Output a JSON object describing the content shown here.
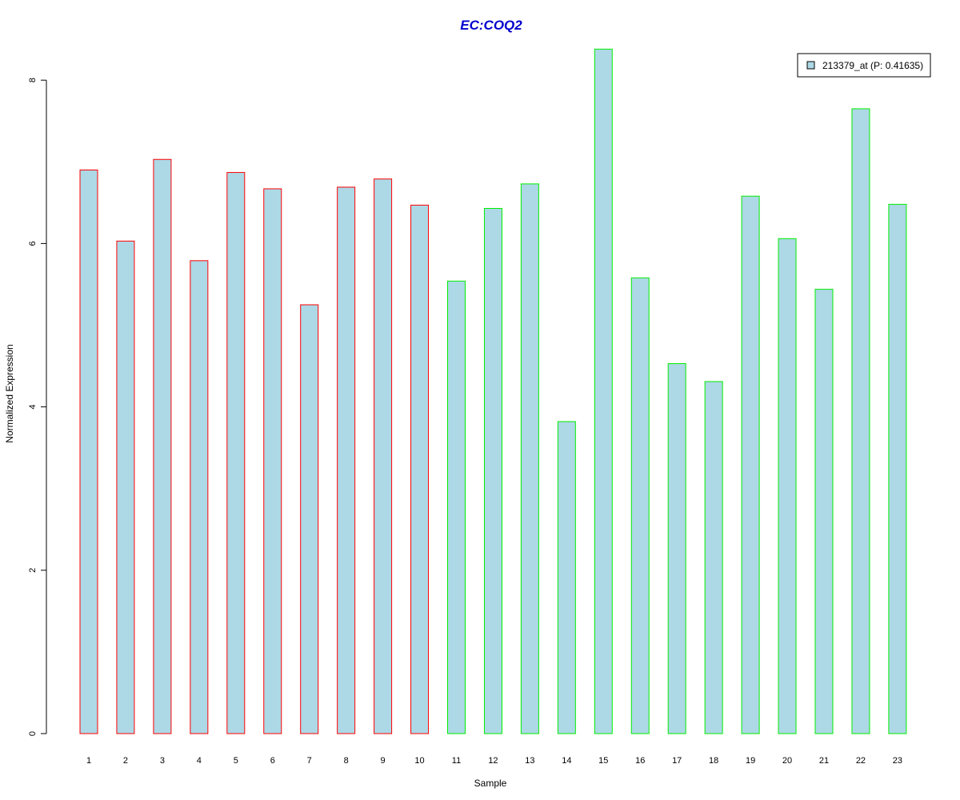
{
  "chart_data": {
    "type": "bar",
    "title": "EC:COQ2",
    "xlabel": "Sample",
    "ylabel": "Normalized Expression",
    "categories": [
      "1",
      "2",
      "3",
      "4",
      "5",
      "6",
      "7",
      "8",
      "9",
      "10",
      "11",
      "12",
      "13",
      "14",
      "15",
      "16",
      "17",
      "18",
      "19",
      "20",
      "21",
      "22",
      "23"
    ],
    "series": [
      {
        "name": "213379_at (P: 0.41635)",
        "values": [
          6.9,
          6.03,
          7.03,
          5.79,
          6.87,
          6.67,
          5.25,
          6.69,
          6.79,
          6.47,
          5.54,
          6.43,
          6.73,
          3.82,
          8.38,
          5.58,
          4.53,
          4.31,
          6.58,
          6.06,
          5.44,
          7.65,
          6.48
        ]
      }
    ],
    "groups": [
      {
        "samples": [
          1,
          2,
          3,
          4,
          5,
          6,
          7,
          8,
          9,
          10
        ],
        "border_color": "#ff0000"
      },
      {
        "samples": [
          11,
          12,
          13,
          14,
          15,
          16,
          17,
          18,
          19,
          20,
          21,
          22,
          23
        ],
        "border_color": "#00ee00"
      }
    ],
    "y_ticks": [
      0,
      2,
      4,
      6,
      8
    ],
    "ylim": [
      0,
      8.38
    ],
    "fill_color": "#add8e6",
    "title_color": "#0000cd",
    "legend_position": "top-right",
    "grid": false
  }
}
